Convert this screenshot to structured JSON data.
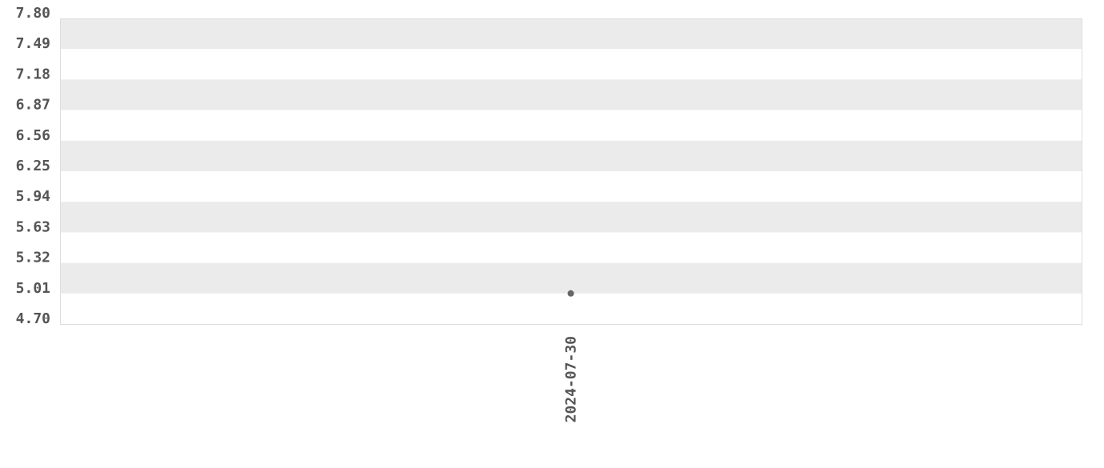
{
  "chart_data": {
    "type": "scatter",
    "title": "",
    "xlabel": "",
    "ylabel": "",
    "x_categories": [
      "2024-07-30"
    ],
    "points": [
      {
        "x": "2024-07-30",
        "y": 5.01
      }
    ],
    "ylim": [
      4.7,
      7.8
    ],
    "y_ticks": [
      "7.80",
      "7.49",
      "7.18",
      "6.87",
      "6.56",
      "6.25",
      "5.94",
      "5.63",
      "5.32",
      "5.01",
      "4.70"
    ],
    "grid": "alternating horizontal bands",
    "legend": "none",
    "colors": {
      "point": "#666666",
      "band": "#ebebeb",
      "border": "#dddddd",
      "text": "#555555"
    }
  }
}
